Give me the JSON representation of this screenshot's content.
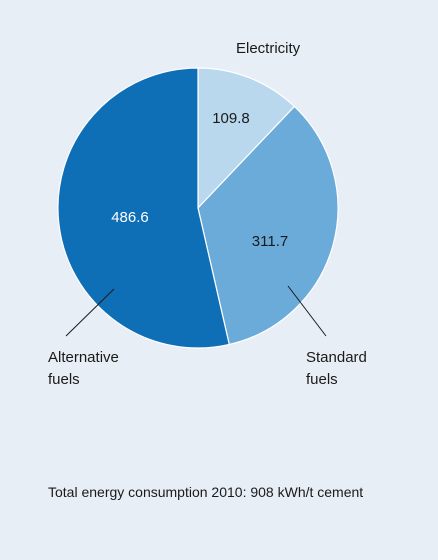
{
  "colors": {
    "background": "#e8eef6",
    "electricity": "#b9d8ee",
    "standard_fuels": "#6aabd9",
    "alternative_fuels": "#0e6fb6",
    "outline": "#ffffff",
    "leader": "#1a1a1a"
  },
  "chart_data": {
    "type": "pie",
    "slices": [
      {
        "name": "Electricity",
        "label_lines": [
          "Electricity"
        ],
        "value": 109.8,
        "value_label": "109.8"
      },
      {
        "name": "Standard fuels",
        "label_lines": [
          "Standard",
          "fuels"
        ],
        "value": 311.7,
        "value_label": "311.7"
      },
      {
        "name": "Alternative fuels",
        "label_lines": [
          "Alternative",
          "fuels"
        ],
        "value": 486.6,
        "value_label": "486.6"
      }
    ],
    "start": "top (12 o'clock)",
    "direction": "clockwise",
    "caption": "Total energy consumption 2010: 908 kWh/t cement"
  }
}
